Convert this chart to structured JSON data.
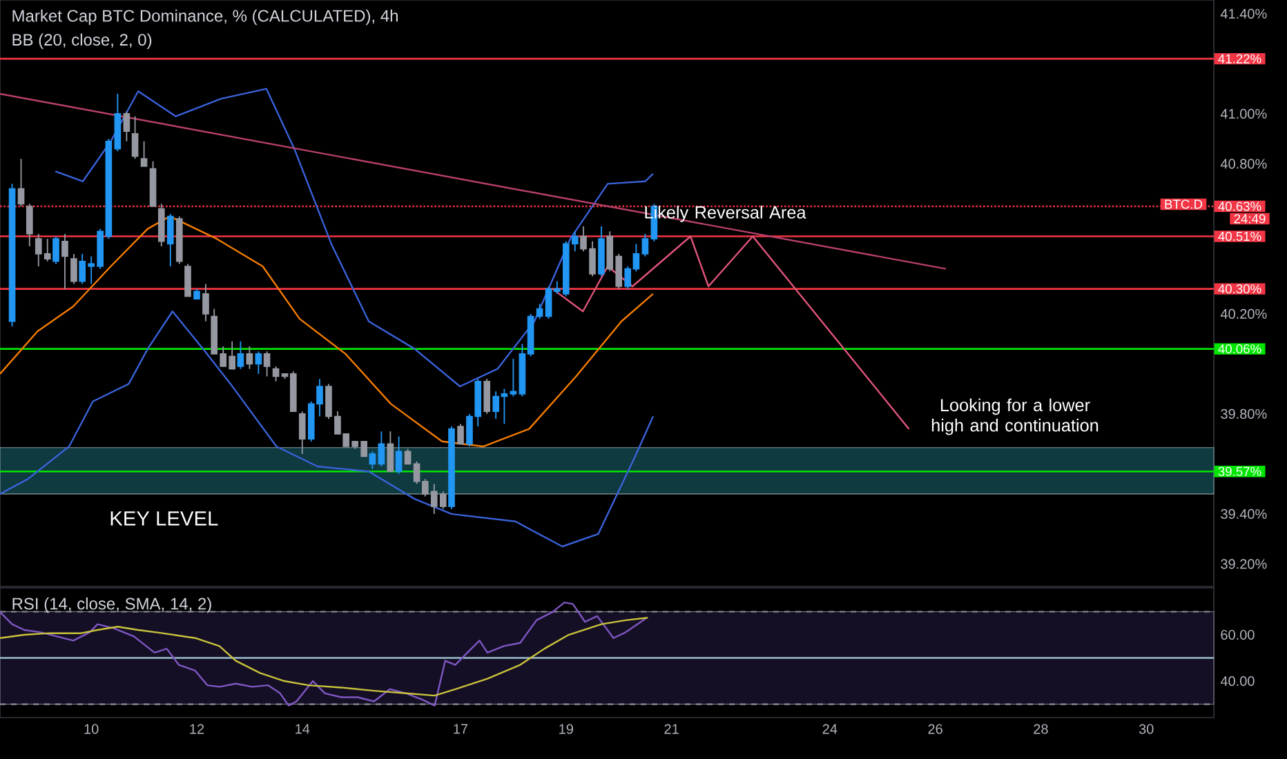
{
  "chart_data": [
    {
      "type": "candlestick",
      "title": "Market Cap BTC Dominance, % (CALCULATED), 4h",
      "subtitle": "BB (20, close, 2, 0)",
      "xlim": [
        8.27,
        31.28
      ],
      "ylim": [
        39.11,
        41.455
      ],
      "tick_labels": "y",
      "yticks": [
        {
          "value": 39.2,
          "label": "39.20%"
        },
        {
          "value": 39.4,
          "label": "39.40%"
        },
        {
          "value": 39.8,
          "label": "39.80%"
        },
        {
          "value": 40.2,
          "label": "40.20%"
        },
        {
          "value": 40.8,
          "label": "40.80%"
        },
        {
          "value": 41,
          "label": "41.00%"
        },
        {
          "value": 41.4,
          "label": "41.40%"
        }
      ],
      "bands": [
        {
          "axis": "y",
          "from": 39.48,
          "to": 39.665,
          "label": "KEY LEVEL",
          "color": "#0f3a40"
        }
      ],
      "ref_lines": [
        {
          "axis": "y",
          "value": 41.22,
          "label": "41.22%",
          "color": "#f23645"
        },
        {
          "axis": "y",
          "value": 40.63,
          "label": "40.63%",
          "color": "#f23645",
          "line_style": "dotted"
        },
        {
          "axis": "y",
          "value": 40.51,
          "label": "40.51%",
          "color": "#f23645"
        },
        {
          "axis": "y",
          "value": 40.3,
          "label": "40.30%",
          "color": "#f23645"
        },
        {
          "axis": "y",
          "value": 40.06,
          "label": "40.06%",
          "color": "#00e600"
        },
        {
          "axis": "y",
          "value": 39.57,
          "label": "39.57%",
          "color": "#00e600"
        }
      ],
      "annotations": [
        "Likely Reversal Area",
        "Looking for a lower high and continuation",
        "BTC.D",
        "24:49"
      ],
      "series": [
        {
          "type": "line",
          "color": "#3a62d9",
          "x": [
            9.32,
            9.84,
            10.37,
            10.89,
            11.6,
            12.46,
            13.32,
            13.85,
            14.55,
            15.26,
            16.13,
            16.99,
            17.7,
            18.4,
            19.08,
            19.79,
            20.5,
            20.65
          ],
          "values": [
            40.77,
            40.73,
            40.89,
            41.09,
            40.99,
            41.06,
            41.1,
            40.86,
            40.48,
            40.17,
            40.06,
            39.91,
            39.98,
            40.17,
            40.5,
            40.72,
            40.73,
            40.76
          ]
        },
        {
          "type": "line",
          "color": "#3a62d9",
          "x": [
            8.27,
            8.8,
            9.58,
            10.03,
            10.71,
            11.07,
            11.54,
            12.12,
            12.64,
            13.51,
            14.29,
            15.26,
            16.13,
            16.83,
            18.04,
            18.93,
            19.61,
            20.31,
            20.65
          ],
          "values": [
            39.48,
            39.54,
            39.67,
            39.85,
            39.92,
            40.06,
            40.21,
            40.06,
            39.92,
            39.67,
            39.59,
            39.57,
            39.46,
            39.4,
            39.37,
            39.27,
            39.32,
            39.63,
            39.79
          ]
        },
        {
          "type": "line",
          "color": "#f57c00",
          "x": [
            8.27,
            8.98,
            9.66,
            10.37,
            11.07,
            11.49,
            12.38,
            13.25,
            13.95,
            14.82,
            15.68,
            16.65,
            17.43,
            18.3,
            19.19,
            20.05,
            20.65
          ],
          "values": [
            39.96,
            40.13,
            40.23,
            40.39,
            40.54,
            40.59,
            40.5,
            40.39,
            40.18,
            40.04,
            39.84,
            39.69,
            39.67,
            39.74,
            39.95,
            40.17,
            40.28
          ]
        },
        {
          "type": "line",
          "color": "#b8406c",
          "x": [
            8.27,
            26.2
          ],
          "values": [
            41.08,
            40.38
          ]
        },
        {
          "type": "line",
          "color": "#e0557a",
          "x": [
            18.74,
            19.32,
            19.79,
            20.26,
            21.36,
            21.7,
            22.54,
            25.5
          ],
          "values": [
            40.3,
            40.21,
            40.39,
            40.31,
            40.51,
            40.31,
            40.51,
            39.74
          ]
        },
        {
          "type": "candlestick",
          "colors": [
            "#2196f3",
            "#9598a1",
            "#9598a1",
            "#9598a1",
            "#9598a1",
            "#2196f3",
            "#9598a1",
            "#9598a1",
            "#2196f3",
            "#2196f3",
            "#2196f3",
            "#2196f3",
            "#2196f3",
            "#9598a1",
            "#9598a1",
            "#9598a1",
            "#9598a1",
            "#9598a1",
            "#2196f3",
            "#9598a1",
            "#9598a1",
            "#2196f3",
            "#9598a1",
            "#9598a1",
            "#9598a1",
            "#9598a1",
            "#2196f3",
            "#9598a1",
            "#2196f3",
            "#9598a1",
            "#9598a1",
            "#9598a1",
            "#9598a1",
            "#9598a1",
            "#2196f3",
            "#2196f3",
            "#9598a1",
            "#9598a1",
            "#9598a1",
            "#9598a1",
            "#9598a1",
            "#2196f3",
            "#2196f3",
            "#9598a1",
            "#2196f3",
            "#9598a1",
            "#9598a1",
            "#9598a1",
            "#9598a1",
            "#9598a1",
            "#2196f3",
            "#9598a1",
            "#2196f3",
            "#2196f3",
            "#9598a1",
            "#2196f3",
            "#2196f3",
            "#2196f3",
            "#2196f3",
            "#2196f3",
            "#2196f3",
            "#2196f3",
            "#2196f3",
            "#2196f3",
            "#2196f3",
            "#9598a1",
            "#9598a1",
            "#2196f3",
            "#9598a1",
            "#9598a1",
            "#2196f3",
            "#2196f3",
            "#2196f3",
            "#2196f3"
          ],
          "x": [
            8.5,
            8.67,
            8.83,
            9,
            9.17,
            9.33,
            9.5,
            9.67,
            9.83,
            10,
            10.17,
            10.33,
            10.5,
            10.67,
            10.83,
            11,
            11.17,
            11.33,
            11.5,
            11.67,
            11.83,
            12,
            12.17,
            12.33,
            12.5,
            12.67,
            12.83,
            13,
            13.17,
            13.33,
            13.5,
            13.67,
            13.83,
            14,
            14.17,
            14.33,
            14.5,
            14.67,
            14.83,
            15,
            15.17,
            15.33,
            15.5,
            15.67,
            15.83,
            16,
            16.17,
            16.33,
            16.5,
            16.67,
            16.83,
            17,
            17.17,
            17.33,
            17.5,
            17.67,
            17.83,
            18,
            18.17,
            18.33,
            18.5,
            18.67,
            18.83,
            19,
            19.17,
            19.33,
            19.5,
            19.67,
            19.83,
            20,
            20.17,
            20.33,
            20.5,
            20.67
          ],
          "ohlc": [
            [
              40.17,
              40.72,
              40.15,
              40.7
            ],
            [
              40.7,
              40.82,
              40.63,
              40.64
            ],
            [
              40.63,
              40.64,
              40.47,
              40.52
            ],
            [
              40.5,
              40.52,
              40.39,
              40.44
            ],
            [
              40.44,
              40.5,
              40.41,
              40.42
            ],
            [
              40.41,
              40.51,
              40.4,
              40.5
            ],
            [
              40.49,
              40.52,
              40.3,
              40.43
            ],
            [
              40.42,
              40.44,
              40.32,
              40.33
            ],
            [
              40.33,
              40.44,
              40.32,
              40.41
            ],
            [
              40.39,
              40.43,
              40.32,
              40.4
            ],
            [
              40.39,
              40.54,
              40.38,
              40.53
            ],
            [
              40.51,
              40.9,
              40.5,
              40.89
            ],
            [
              40.86,
              41.08,
              40.85,
              41.0
            ],
            [
              41.0,
              41.01,
              40.89,
              40.93
            ],
            [
              40.92,
              40.99,
              40.82,
              40.83
            ],
            [
              40.82,
              40.89,
              40.79,
              40.79
            ],
            [
              40.78,
              40.81,
              40.63,
              40.63
            ],
            [
              40.62,
              40.64,
              40.47,
              40.49
            ],
            [
              40.48,
              40.6,
              40.39,
              40.59
            ],
            [
              40.58,
              40.59,
              40.4,
              40.41
            ],
            [
              40.39,
              40.4,
              40.27,
              40.27
            ],
            [
              40.26,
              40.3,
              40.26,
              40.29
            ],
            [
              40.28,
              40.32,
              40.17,
              40.2
            ],
            [
              40.19,
              40.22,
              40.04,
              40.04
            ],
            [
              40.04,
              40.07,
              39.99,
              39.99
            ],
            [
              40.03,
              40.09,
              39.98,
              39.98
            ],
            [
              39.99,
              40.09,
              39.98,
              40.04
            ],
            [
              40.04,
              40.07,
              39.98,
              40.0
            ],
            [
              40.0,
              40.05,
              39.96,
              40.04
            ],
            [
              40.04,
              40.05,
              39.95,
              39.99
            ],
            [
              39.98,
              39.99,
              39.93,
              39.95
            ],
            [
              39.96,
              39.96,
              39.94,
              39.95
            ],
            [
              39.96,
              39.97,
              39.81,
              39.81
            ],
            [
              39.8,
              39.81,
              39.64,
              39.7
            ],
            [
              39.7,
              39.85,
              39.69,
              39.84
            ],
            [
              39.84,
              39.94,
              39.79,
              39.91
            ],
            [
              39.91,
              39.92,
              39.78,
              39.79
            ],
            [
              39.79,
              39.81,
              39.72,
              39.72
            ],
            [
              39.72,
              39.72,
              39.67,
              39.67
            ],
            [
              39.69,
              39.69,
              39.66,
              39.67
            ],
            [
              39.69,
              39.69,
              39.63,
              39.63
            ],
            [
              39.6,
              39.65,
              39.58,
              39.64
            ],
            [
              39.6,
              39.73,
              39.59,
              39.68
            ],
            [
              39.68,
              39.73,
              39.57,
              39.57
            ],
            [
              39.57,
              39.71,
              39.56,
              39.65
            ],
            [
              39.65,
              39.66,
              39.6,
              39.6
            ],
            [
              39.6,
              39.61,
              39.52,
              39.53
            ],
            [
              39.53,
              39.54,
              39.47,
              39.48
            ],
            [
              39.49,
              39.52,
              39.4,
              39.43
            ],
            [
              39.48,
              39.49,
              39.42,
              39.43
            ],
            [
              39.43,
              39.75,
              39.42,
              39.74
            ],
            [
              39.75,
              39.76,
              39.68,
              39.68
            ],
            [
              39.68,
              39.8,
              39.67,
              39.79
            ],
            [
              39.79,
              39.94,
              39.75,
              39.93
            ],
            [
              39.93,
              39.94,
              39.8,
              39.81
            ],
            [
              39.81,
              39.89,
              39.78,
              39.87
            ],
            [
              39.87,
              39.9,
              39.76,
              39.88
            ],
            [
              39.88,
              40.02,
              39.87,
              39.89
            ],
            [
              39.88,
              40.08,
              39.87,
              40.04
            ],
            [
              40.04,
              40.2,
              40.03,
              40.19
            ],
            [
              40.19,
              40.24,
              40.18,
              40.22
            ],
            [
              40.19,
              40.31,
              40.18,
              40.3
            ],
            [
              40.29,
              40.33,
              40.28,
              40.3
            ],
            [
              40.28,
              40.49,
              40.27,
              40.48
            ],
            [
              40.48,
              40.53,
              40.45,
              40.51
            ],
            [
              40.51,
              40.55,
              40.45,
              40.46
            ],
            [
              40.46,
              40.49,
              40.35,
              40.36
            ],
            [
              40.36,
              40.55,
              40.35,
              40.5
            ],
            [
              40.51,
              40.53,
              40.37,
              40.38
            ],
            [
              40.43,
              40.44,
              40.3,
              40.31
            ],
            [
              40.31,
              40.39,
              40.3,
              40.38
            ],
            [
              40.38,
              40.48,
              40.37,
              40.44
            ],
            [
              40.44,
              40.52,
              40.43,
              40.5
            ],
            [
              40.5,
              40.64,
              40.49,
              40.63
            ]
          ]
        }
      ]
    },
    {
      "type": "line",
      "title": "RSI (14, close, SMA, 14, 2)",
      "xlim": [
        8.27,
        31.28
      ],
      "ylim": [
        24.2,
        80.3
      ],
      "xticks": [
        10,
        12,
        14,
        17,
        19,
        21,
        24,
        26,
        28,
        30
      ],
      "yticks": [
        {
          "value": 60,
          "label": "60.00"
        },
        {
          "value": 40,
          "label": "40.00"
        }
      ],
      "bands": [
        {
          "axis": "y",
          "from": 30,
          "to": 70,
          "color": "#150f26"
        }
      ],
      "ref_lines": [
        {
          "axis": "y",
          "value": 70,
          "color": "#787b86",
          "line_style": "dashed"
        },
        {
          "axis": "y",
          "value": 50,
          "color": "#9bbfcc"
        },
        {
          "axis": "y",
          "value": 30,
          "color": "#787b86",
          "line_style": "dashed"
        }
      ],
      "series": [
        {
          "color": "#7e57c2",
          "x": [
            8.27,
            8.5,
            8.73,
            9.04,
            9.35,
            9.66,
            9.97,
            10.12,
            10.43,
            10.81,
            11.2,
            11.43,
            11.66,
            11.97,
            12.2,
            12.43,
            12.74,
            13.05,
            13.35,
            13.58,
            13.74,
            13.89,
            14.2,
            14.43,
            14.74,
            15.05,
            15.36,
            15.66,
            15.97,
            16.28,
            16.51,
            16.71,
            16.9,
            17.13,
            17.36,
            17.51,
            17.82,
            18.13,
            18.44,
            18.74,
            18.97,
            19.13,
            19.36,
            19.59,
            19.9,
            20.13,
            20.51
          ],
          "values": [
            69.8,
            64.6,
            62.1,
            61.1,
            59.3,
            57.5,
            61.1,
            64.6,
            62.8,
            59.3,
            52.3,
            54.0,
            47.0,
            44.5,
            38.2,
            37.5,
            38.9,
            37.5,
            38.2,
            34.7,
            29.4,
            31.2,
            40.0,
            34.7,
            33.0,
            33.0,
            31.2,
            36.5,
            34.7,
            31.9,
            29.4,
            48.8,
            47.0,
            52.3,
            57.5,
            52.3,
            55.1,
            56.5,
            66.3,
            69.8,
            74.0,
            73.3,
            65.6,
            68.1,
            58.6,
            61.1,
            67.0
          ]
        },
        {
          "color": "#c9c33b",
          "x": [
            8.27,
            8.73,
            9.2,
            9.81,
            10.12,
            10.5,
            10.89,
            11.35,
            11.97,
            12.43,
            12.74,
            13.2,
            13.66,
            14.12,
            14.74,
            15.36,
            15.97,
            16.51,
            16.9,
            17.51,
            18.13,
            18.59,
            19.05,
            19.67,
            20.13,
            20.55
          ],
          "values": [
            58.6,
            60.0,
            60.7,
            60.7,
            62.1,
            63.5,
            62.1,
            60.7,
            58.6,
            55.1,
            48.8,
            43.5,
            40.0,
            38.2,
            37.2,
            35.8,
            34.7,
            33.7,
            36.5,
            41.0,
            47.0,
            54.0,
            60.0,
            64.6,
            66.3,
            67.4
          ]
        }
      ]
    }
  ]
}
